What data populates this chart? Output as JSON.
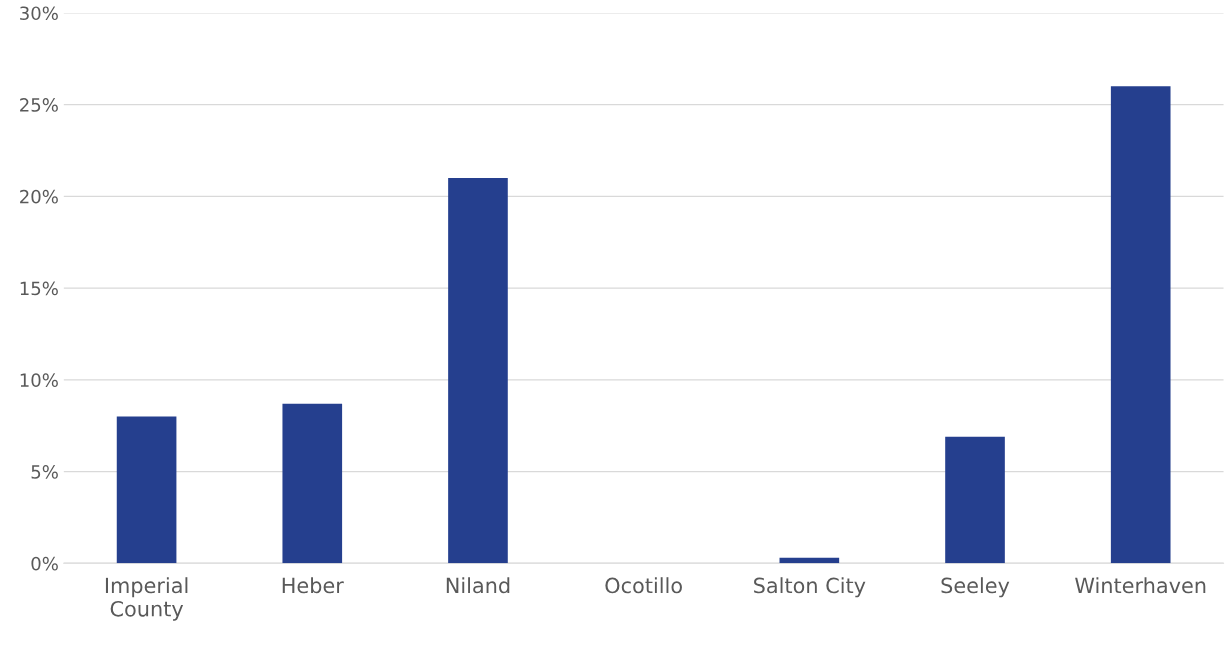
{
  "chart_data": {
    "type": "bar",
    "categories": [
      "Imperial\nCounty",
      "Heber",
      "Niland",
      "Ocotillo",
      "Salton City",
      "Seeley",
      "Winterhaven"
    ],
    "values": [
      8.0,
      8.7,
      21.0,
      0,
      0.3,
      6.9,
      26.0
    ],
    "color": "#253f8e",
    "ylim": [
      0,
      30
    ],
    "yticks": [
      {
        "value": 0,
        "label": "0%"
      },
      {
        "value": 5,
        "label": "5%"
      },
      {
        "value": 10,
        "label": "10%"
      },
      {
        "value": 15,
        "label": "15%"
      },
      {
        "value": 20,
        "label": "20%"
      },
      {
        "value": 25,
        "label": "25%"
      },
      {
        "value": 30,
        "label": "30%"
      }
    ],
    "grid": "y"
  }
}
